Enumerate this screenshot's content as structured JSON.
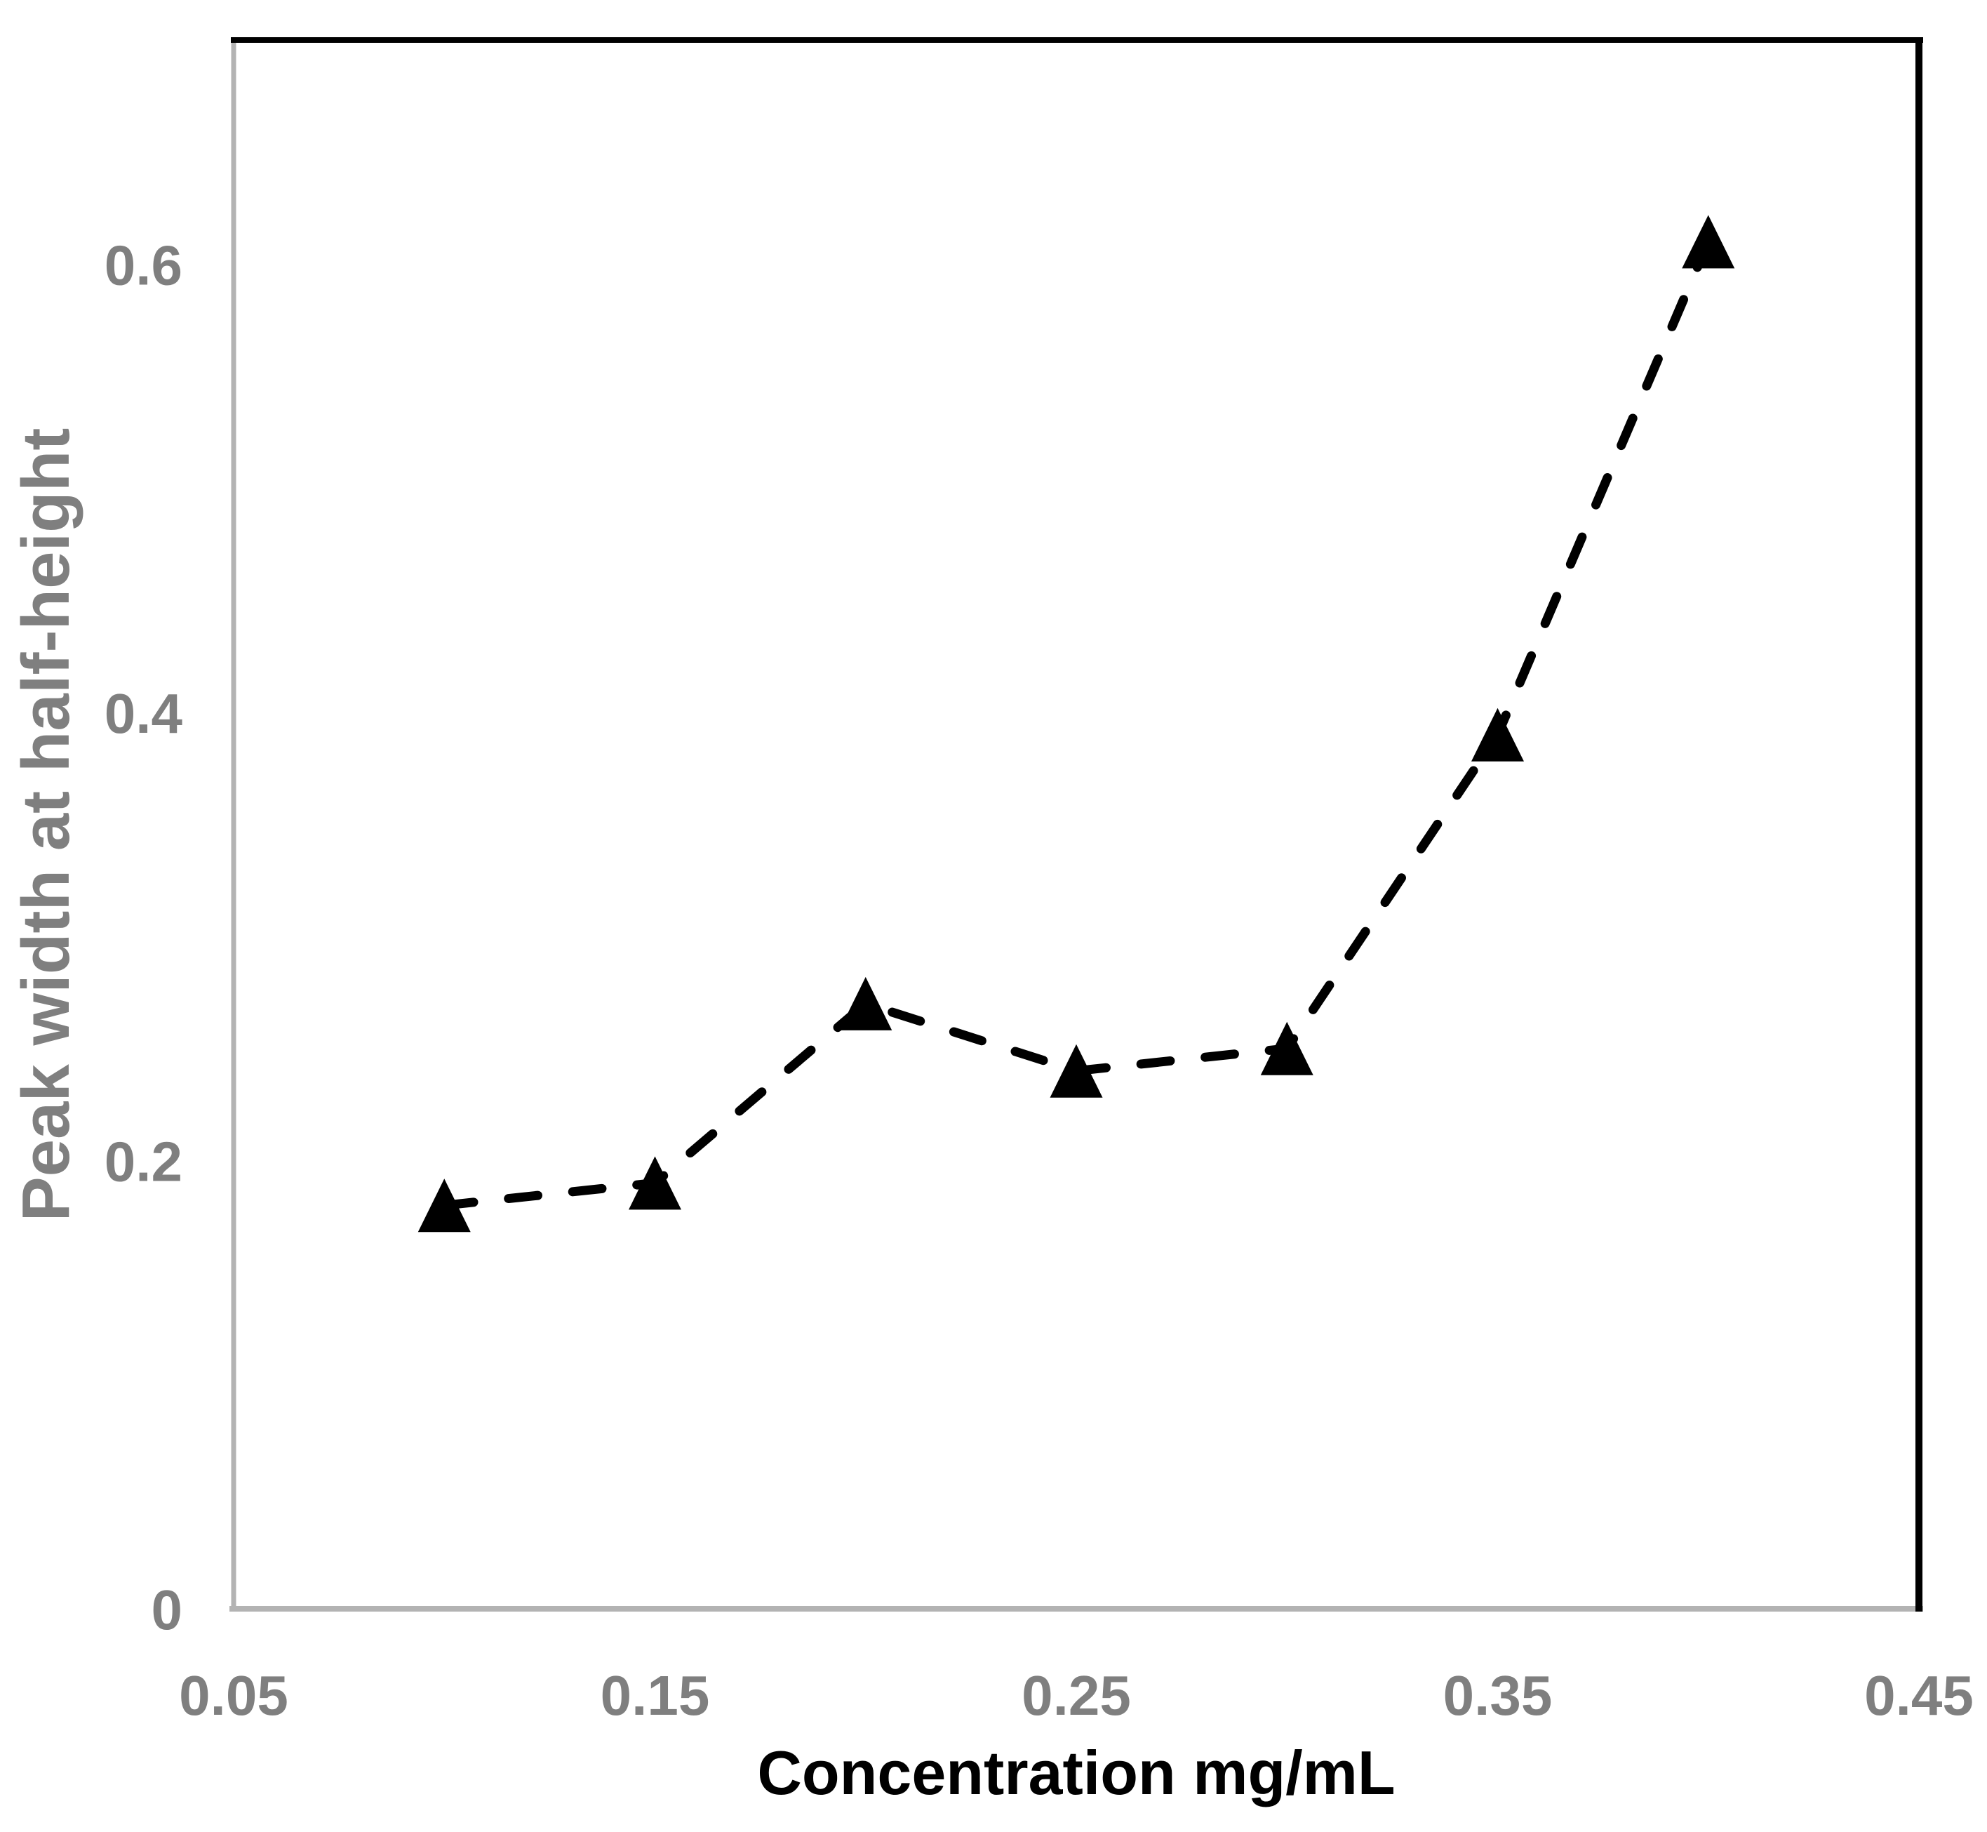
{
  "chart_data": {
    "type": "line",
    "title": "",
    "xlabel": "Concentration mg/mL",
    "ylabel": "Peak width at half-height",
    "x": [
      0.1,
      0.15,
      0.2,
      0.25,
      0.3,
      0.35,
      0.4
    ],
    "y": [
      0.18,
      0.19,
      0.27,
      0.24,
      0.25,
      0.39,
      0.61
    ],
    "xlim": [
      0.05,
      0.45
    ],
    "ylim": [
      0,
      0.7
    ],
    "x_ticks": [
      0.05,
      0.15,
      0.25,
      0.35,
      0.45
    ],
    "x_tick_labels": [
      "0.05",
      "0.15",
      "0.25",
      "0.35",
      "0.45"
    ],
    "y_ticks": [
      0,
      0.2,
      0.4,
      0.6
    ],
    "y_tick_labels": [
      "0",
      "0.2",
      "0.4",
      "0.6"
    ],
    "grid": false,
    "legend": "none",
    "line_style": "dashed",
    "marker": "triangle-up",
    "colors": {
      "line": "#000000",
      "marker": "#000000",
      "tick_label": "#7f7f7f",
      "y_axis_title": "#7f7f7f",
      "x_axis_title": "#000000",
      "border_dark": "#000000",
      "border_light": "#b3b3b3",
      "background": "#ffffff"
    }
  }
}
